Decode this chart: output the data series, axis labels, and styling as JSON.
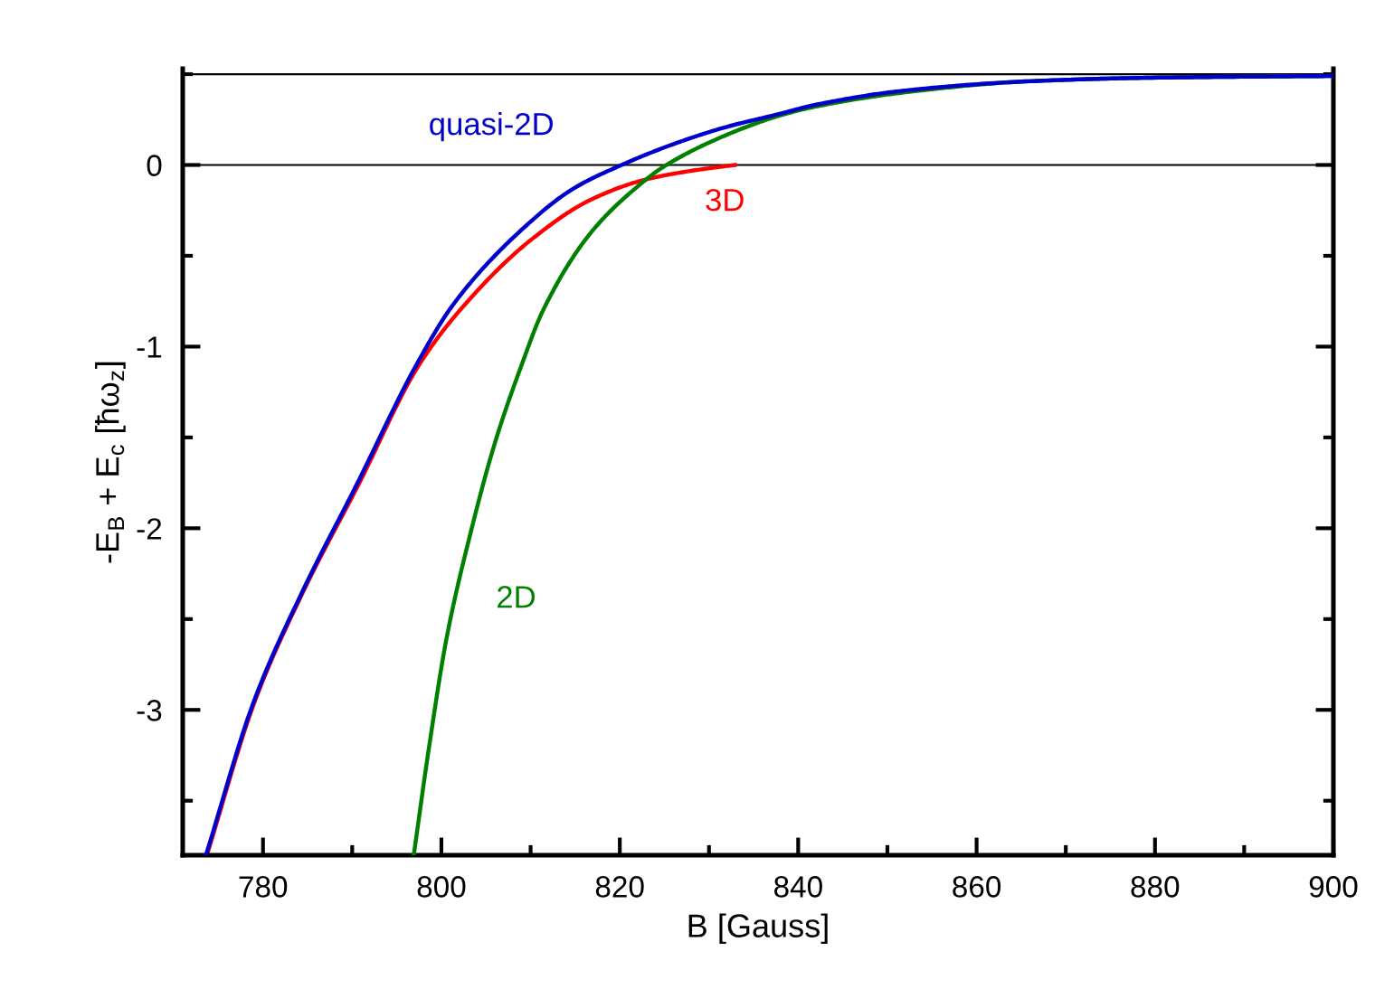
{
  "chart_data": {
    "type": "line",
    "xlabel": "B [Gauss]",
    "ylabel": "-E$_{B}$ + E$_{c}$ [ħω$_{z}$]",
    "xlim": [
      771,
      900
    ],
    "xticks": [
      780,
      800,
      820,
      840,
      860,
      880,
      900
    ],
    "ylim": [
      -3.8,
      0.53
    ],
    "yticks": [
      -3,
      -2,
      -1,
      0
    ],
    "grid": false,
    "legend": false,
    "marker": "none",
    "line_style": "solid",
    "ref_lines": [
      {
        "axis": "y",
        "value": 0,
        "color": "#000000"
      },
      {
        "axis": "y",
        "value": 0.5,
        "color": "#000000"
      }
    ],
    "series": [
      {
        "name": "3D",
        "color": "#ff0000",
        "x": [
          773.7,
          779.1,
          784.5,
          790.7,
          797.5,
          802.6,
          810.1,
          816.8,
          822.9,
          828.3,
          832.9
        ],
        "values": [
          -3.8,
          -2.95,
          -2.35,
          -1.76,
          -1.1,
          -0.77,
          -0.41,
          -0.19,
          -0.08,
          -0.03,
          0.0
        ]
      },
      {
        "name": "2D",
        "color": "#008000",
        "x": [
          796.9,
          798.6,
          800.6,
          803.3,
          806.0,
          809.0,
          811.4,
          816.8,
          822.2,
          824.9,
          831.7,
          837.8,
          841.8,
          852,
          865.5,
          879,
          900
        ],
        "values": [
          -3.8,
          -3.21,
          -2.6,
          -2.02,
          -1.53,
          -1.1,
          -0.8,
          -0.37,
          -0.11,
          -0.01,
          0.16,
          0.27,
          0.32,
          0.4,
          0.46,
          0.48,
          0.49
        ]
      },
      {
        "name": "quasi-2D",
        "color": "#0000cc",
        "x": [
          773.6,
          779.0,
          784.4,
          790.5,
          797.2,
          801.3,
          808.7,
          814.8,
          820.2,
          826.3,
          832.0,
          837.8,
          841.8,
          852,
          865.5,
          879,
          900
        ],
        "values": [
          -3.8,
          -2.95,
          -2.35,
          -1.76,
          -1.1,
          -0.77,
          -0.37,
          -0.13,
          0.0,
          0.12,
          0.21,
          0.28,
          0.33,
          0.41,
          0.46,
          0.48,
          0.49
        ]
      }
    ]
  }
}
